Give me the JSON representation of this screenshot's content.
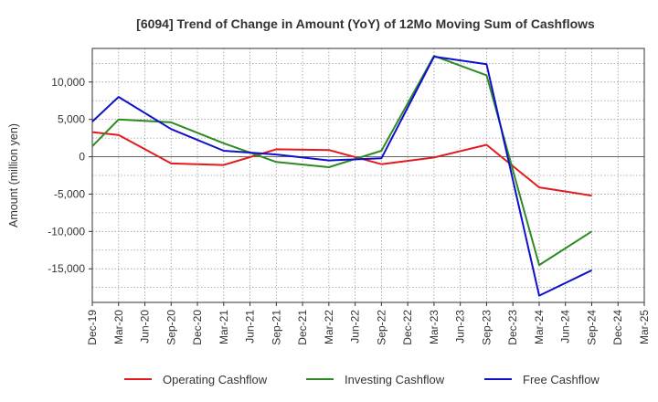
{
  "chart_data": {
    "type": "line",
    "title": "[6094]  Trend of Change in Amount (YoY) of 12Mo Moving Sum of Cashflows",
    "xlabel": "",
    "ylabel": "Amount (million yen)",
    "categories": [
      "Dec-19",
      "Mar-20",
      "Jun-20",
      "Sep-20",
      "Dec-20",
      "Mar-21",
      "Jun-21",
      "Sep-21",
      "Dec-21",
      "Mar-22",
      "Jun-22",
      "Sep-22",
      "Dec-22",
      "Mar-23",
      "Jun-23",
      "Sep-23",
      "Dec-23",
      "Mar-24",
      "Jun-24",
      "Sep-24",
      "Dec-24",
      "Mar-25"
    ],
    "ylim": [
      -19500,
      14500
    ],
    "yticks": [
      10000,
      5000,
      0,
      -5000,
      -10000,
      -15000
    ],
    "ytick_labels": [
      "10,000",
      "5,000",
      "0",
      "-5,000",
      "-10,000",
      "-15,000"
    ],
    "grid": true,
    "legend_position": "bottom",
    "series": [
      {
        "name": "Operating Cashflow",
        "color": "#e31a1c",
        "values": [
          3300,
          2900,
          null,
          -900,
          null,
          -1100,
          null,
          1000,
          null,
          900,
          null,
          -1000,
          null,
          -100,
          null,
          1600,
          null,
          -4100,
          null,
          -5200,
          null,
          null
        ]
      },
      {
        "name": "Investing Cashflow",
        "color": "#2e8b22",
        "values": [
          1400,
          5000,
          null,
          4600,
          null,
          1800,
          null,
          -700,
          null,
          -1400,
          null,
          800,
          null,
          13500,
          null,
          10900,
          null,
          -14500,
          null,
          -10000,
          null,
          null
        ]
      },
      {
        "name": "Free Cashflow",
        "color": "#1010cc",
        "values": [
          4700,
          8000,
          null,
          3700,
          null,
          800,
          null,
          300,
          null,
          -500,
          null,
          -200,
          null,
          13400,
          null,
          12400,
          null,
          -18600,
          null,
          -15200,
          null,
          null
        ]
      }
    ]
  }
}
